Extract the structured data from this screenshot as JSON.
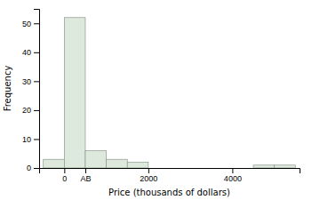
{
  "chart_data": {
    "type": "histogram",
    "xlabel": "Price (thousands of dollars)",
    "ylabel": "Frequency",
    "bins": [
      -500,
      0,
      500,
      1000,
      1500,
      2000,
      2500,
      3000,
      3500,
      4000,
      4500,
      5000,
      5500
    ],
    "values": [
      3,
      52,
      6,
      3,
      2,
      0,
      0,
      0,
      0,
      0,
      1,
      1
    ],
    "color": "#dce9dc",
    "xlim": [
      -600,
      5600
    ],
    "ylim": [
      0,
      55
    ],
    "xticks": [
      0,
      {
        "value": 500,
        "label": "AB"
      },
      2000,
      4000
    ],
    "yticks": [
      0,
      10,
      20,
      30,
      40,
      50
    ],
    "grid": false
  }
}
